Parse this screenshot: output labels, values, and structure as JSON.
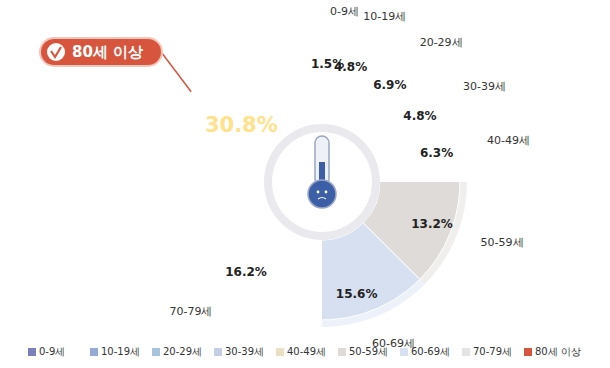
{
  "chart_data": {
    "type": "pie",
    "categories": [
      "0-9세",
      "10-19세",
      "20-29세",
      "30-39세",
      "40-49세",
      "50-59세",
      "60-69세",
      "70-79세",
      "80세 이상"
    ],
    "values": [
      1.5,
      4.8,
      6.9,
      4.8,
      6.3,
      13.2,
      15.6,
      16.2,
      30.8
    ],
    "value_labels": [
      "1.5%",
      "4.8%",
      "6.9%",
      "4.8%",
      "6.3%",
      "13.2%",
      "15.6%",
      "16.2%",
      "30.8%"
    ],
    "colors": [
      "#7b80bd",
      "#93a9d6",
      "#a9c3dc",
      "#c8cde6",
      "#e9e0c4",
      "#dfdbd8",
      "#d6e0f1",
      "#e6e3e3",
      "#d8553d"
    ],
    "data_labels": true,
    "legend": "bottom"
  }
}
